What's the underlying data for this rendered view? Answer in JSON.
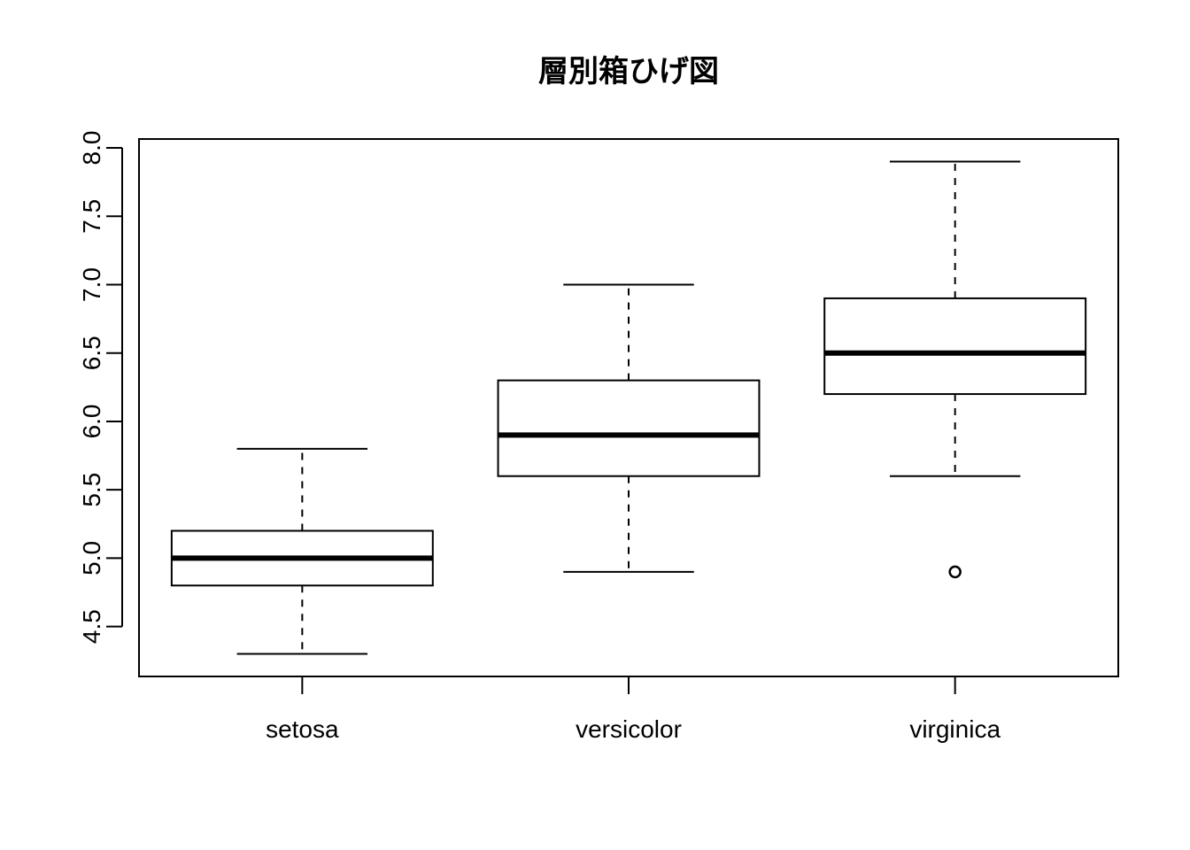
{
  "chart_data": {
    "type": "boxplot",
    "title": "層別箱ひげ図",
    "xlabel": "",
    "ylabel": "",
    "categories": [
      "setosa",
      "versicolor",
      "virginica"
    ],
    "y_ticks": [
      4.5,
      5.0,
      5.5,
      6.0,
      6.5,
      7.0,
      7.5,
      8.0
    ],
    "y_tick_labels": [
      "4.5",
      "5.0",
      "5.5",
      "6.0",
      "6.5",
      "7.0",
      "7.5",
      "8.0"
    ],
    "ylim": [
      4.135,
      8.065
    ],
    "grid": false,
    "boxes": [
      {
        "category": "setosa",
        "whisker_low": 4.3,
        "q1": 4.8,
        "median": 5.0,
        "q3": 5.2,
        "whisker_high": 5.8,
        "outliers": []
      },
      {
        "category": "versicolor",
        "whisker_low": 4.9,
        "q1": 5.6,
        "median": 5.9,
        "q3": 6.3,
        "whisker_high": 7.0,
        "outliers": []
      },
      {
        "category": "virginica",
        "whisker_low": 5.6,
        "q1": 6.2,
        "median": 6.5,
        "q3": 6.9,
        "whisker_high": 7.9,
        "outliers": [
          4.9
        ]
      }
    ]
  }
}
